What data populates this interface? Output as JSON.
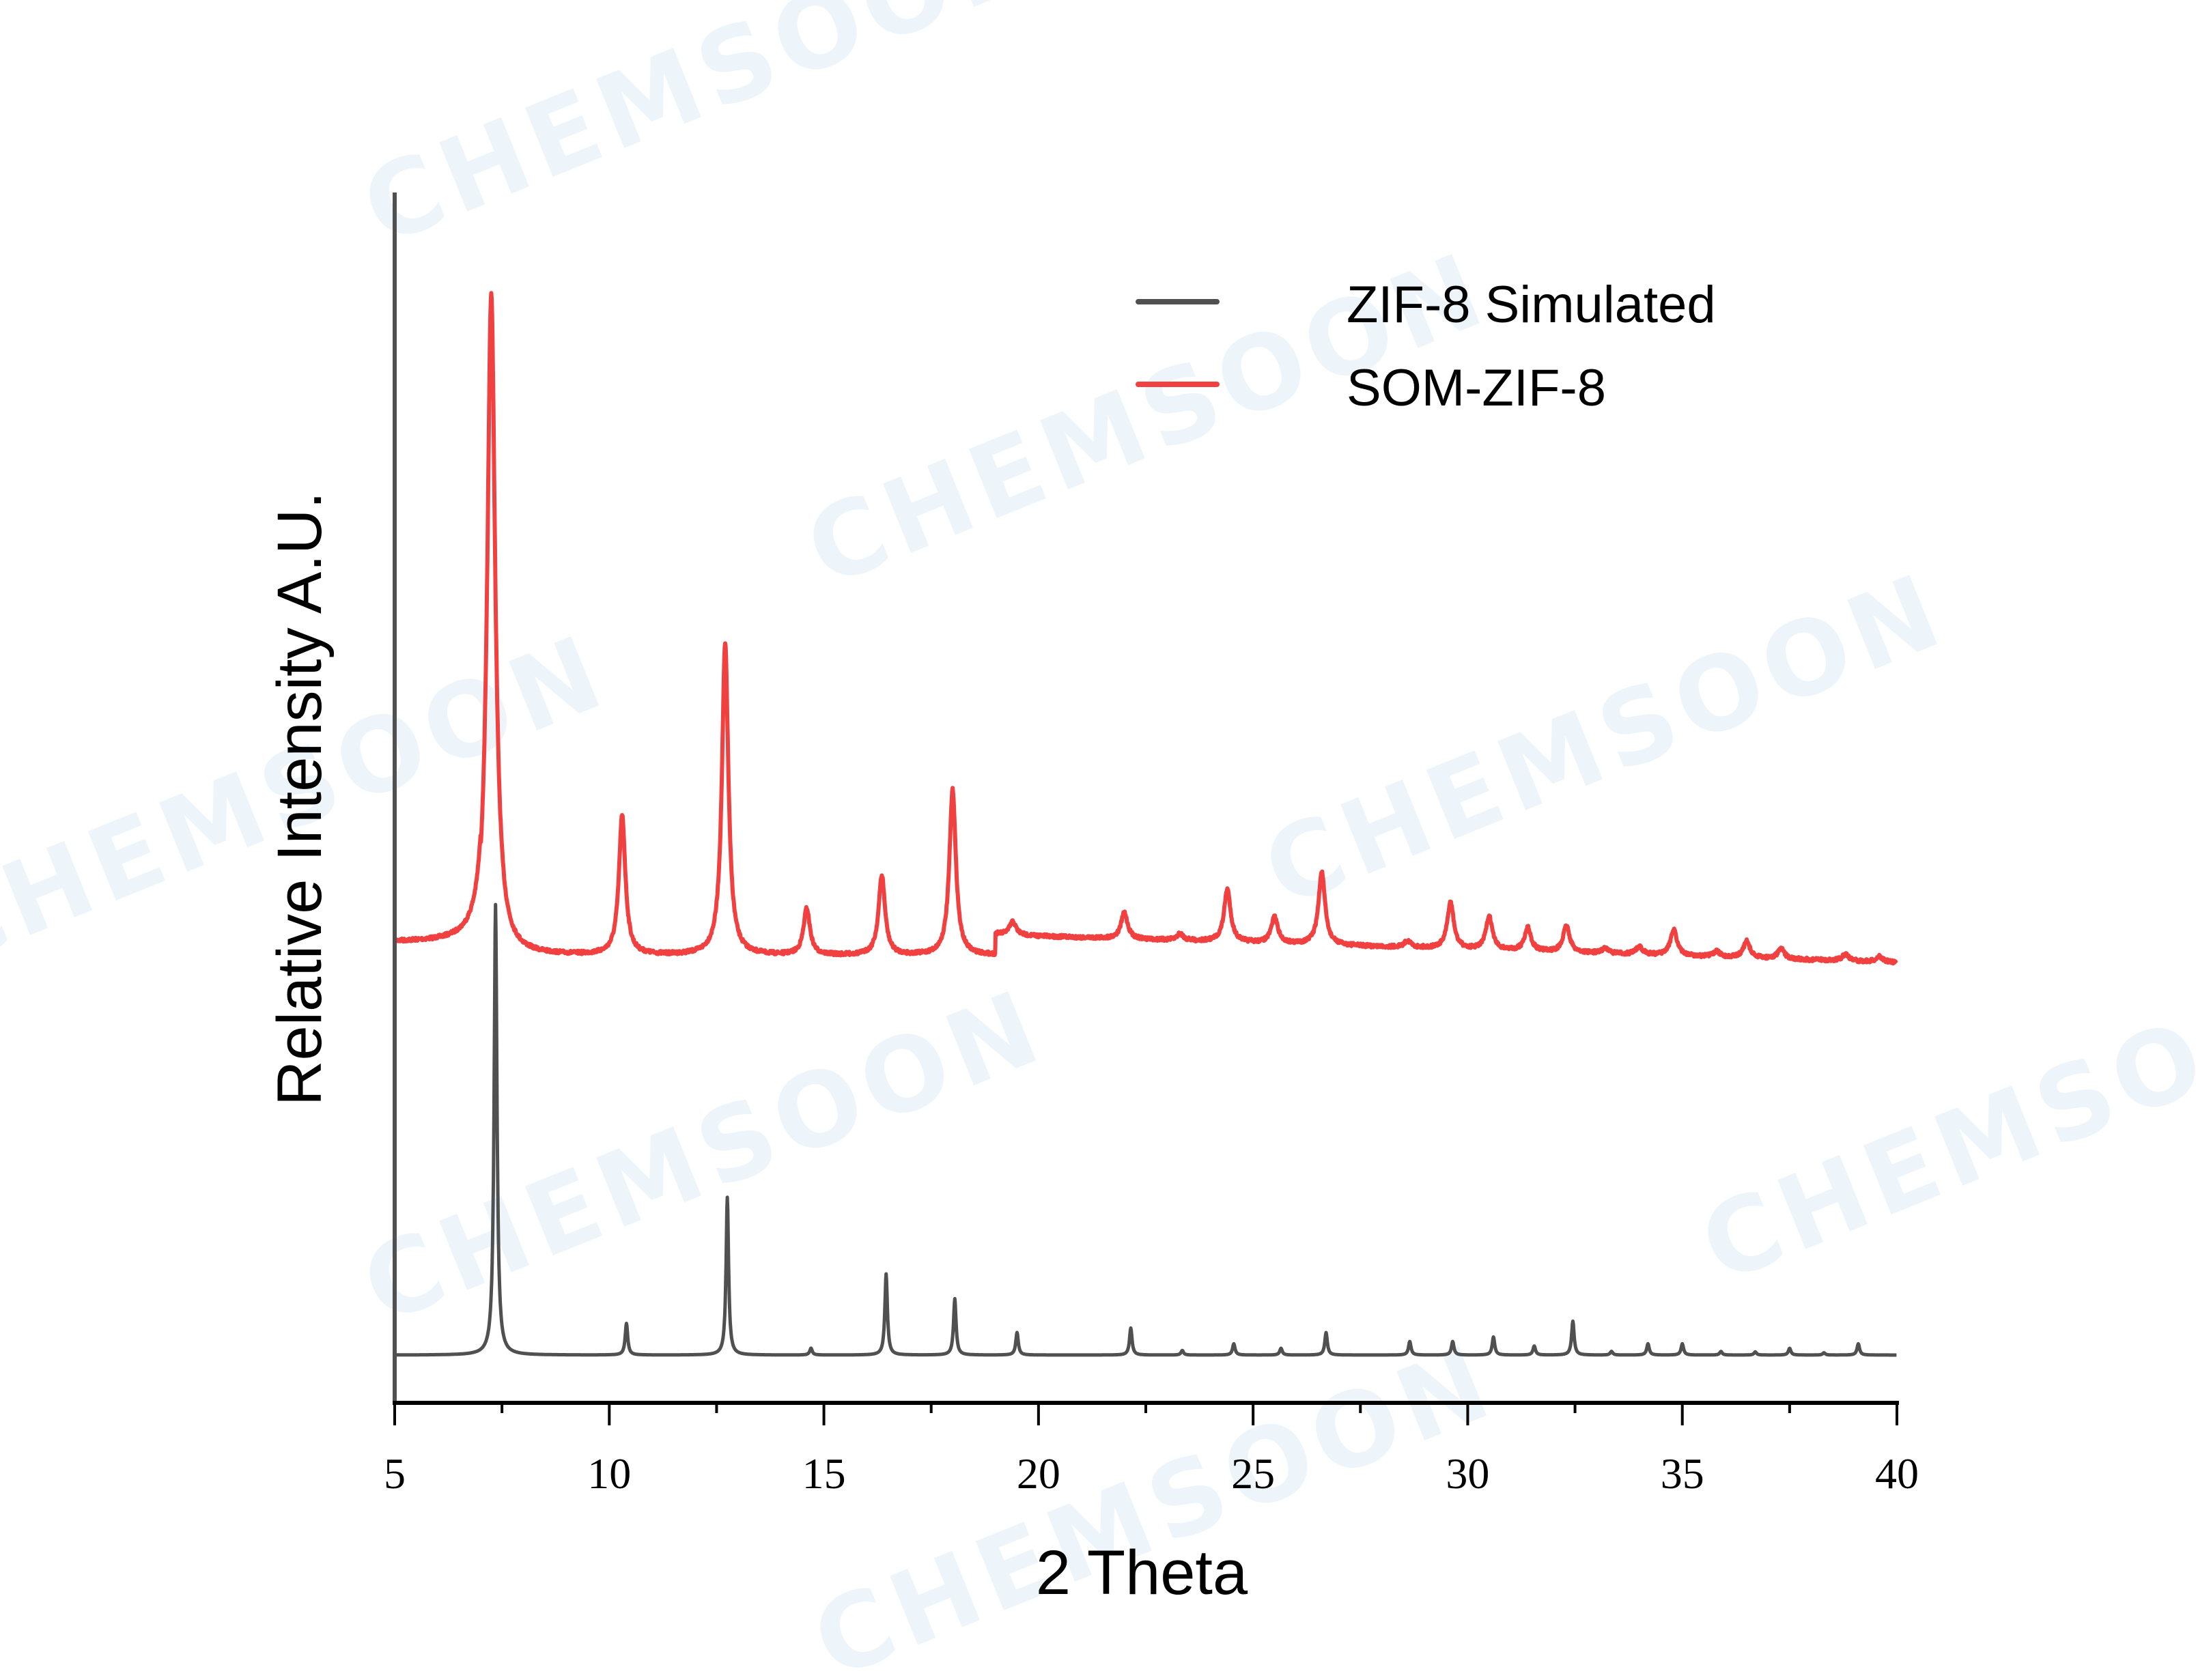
{
  "chart_data": {
    "type": "line",
    "title": "",
    "xlabel": "2 Theta",
    "ylabel": "Relative Intensity A.U.",
    "xlim": [
      5,
      40
    ],
    "x_ticks": [
      5,
      10,
      15,
      20,
      25,
      30,
      35,
      40
    ],
    "x_tick_labels": [
      "5",
      "10",
      "15",
      "20",
      "25",
      "30",
      "35",
      "40"
    ],
    "y_ticks": [],
    "grid": false,
    "legend_position": "upper right",
    "series": [
      {
        "name": "ZIF-8 Simulated",
        "color": "#505050",
        "baseline": 0,
        "peaks": [
          {
            "x": 7.35,
            "y": 100
          },
          {
            "x": 10.4,
            "y": 7
          },
          {
            "x": 12.75,
            "y": 35
          },
          {
            "x": 14.7,
            "y": 1.5
          },
          {
            "x": 16.45,
            "y": 18
          },
          {
            "x": 18.05,
            "y": 12.5
          },
          {
            "x": 19.5,
            "y": 5
          },
          {
            "x": 22.15,
            "y": 6
          },
          {
            "x": 23.35,
            "y": 1
          },
          {
            "x": 24.55,
            "y": 2.5
          },
          {
            "x": 25.65,
            "y": 1.5
          },
          {
            "x": 26.7,
            "y": 5
          },
          {
            "x": 28.65,
            "y": 3
          },
          {
            "x": 29.65,
            "y": 3
          },
          {
            "x": 30.6,
            "y": 4
          },
          {
            "x": 31.55,
            "y": 2
          },
          {
            "x": 32.45,
            "y": 7.5
          },
          {
            "x": 33.35,
            "y": 0.8
          },
          {
            "x": 34.2,
            "y": 2.5
          },
          {
            "x": 35.0,
            "y": 2.5
          },
          {
            "x": 35.9,
            "y": 0.8
          },
          {
            "x": 36.7,
            "y": 0.7
          },
          {
            "x": 37.5,
            "y": 1.5
          },
          {
            "x": 38.3,
            "y": 0.5
          },
          {
            "x": 39.1,
            "y": 2.5
          }
        ]
      },
      {
        "name": "SOM-ZIF-8",
        "color": "#f04040",
        "baseline": 0,
        "peaks": [
          {
            "x": 7.25,
            "y": 100
          },
          {
            "x": 10.3,
            "y": 21
          },
          {
            "x": 12.7,
            "y": 47
          },
          {
            "x": 14.6,
            "y": 7
          },
          {
            "x": 16.35,
            "y": 12
          },
          {
            "x": 18.0,
            "y": 25
          },
          {
            "x": 19.4,
            "y": 2
          },
          {
            "x": 22.0,
            "y": 4
          },
          {
            "x": 23.3,
            "y": 1
          },
          {
            "x": 24.4,
            "y": 8
          },
          {
            "x": 25.5,
            "y": 4
          },
          {
            "x": 26.6,
            "y": 11
          },
          {
            "x": 28.6,
            "y": 1
          },
          {
            "x": 29.6,
            "y": 7
          },
          {
            "x": 30.5,
            "y": 5
          },
          {
            "x": 31.4,
            "y": 3.5
          },
          {
            "x": 32.3,
            "y": 4
          },
          {
            "x": 33.2,
            "y": 0.8
          },
          {
            "x": 34.0,
            "y": 1.2
          },
          {
            "x": 34.8,
            "y": 4
          },
          {
            "x": 35.8,
            "y": 0.8
          },
          {
            "x": 36.5,
            "y": 2.5
          },
          {
            "x": 37.3,
            "y": 1.5
          },
          {
            "x": 38.8,
            "y": 1
          },
          {
            "x": 39.6,
            "y": 0.8
          }
        ]
      }
    ]
  },
  "legend": {
    "items": [
      {
        "label": "ZIF-8 Simulated",
        "color": "#505050"
      },
      {
        "label": "SOM-ZIF-8",
        "color": "#f04040"
      }
    ]
  },
  "axes": {
    "xlabel": "2 Theta",
    "ylabel": "Relative Intensity A.U.",
    "ticks": [
      "5",
      "10",
      "15",
      "20",
      "25",
      "30",
      "35",
      "40"
    ]
  },
  "watermark": {
    "text": "CHEMSOON"
  }
}
